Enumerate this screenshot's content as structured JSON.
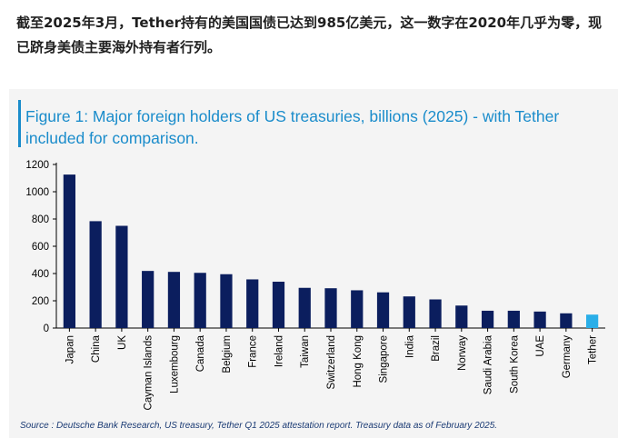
{
  "intro_text": "截至2025年3月，Tether持有的美国国债已达到985亿美元，这一数字在2020年几乎为零，现已跻身美债主要海外持有者行列。",
  "colors": {
    "bar": "#0b1e5e",
    "highlight_bar": "#2aaee8",
    "title": "#1a8ccb",
    "source": "#1a3a73",
    "card_background": "#f4f4f4"
  },
  "source_text": "Source : Deutsche Bank Research, US treasury, Tether Q1 2025 attestation report. Treasury data as of February 2025.",
  "chart_data": {
    "type": "bar",
    "title": "Figure 1: Major foreign holders of US treasuries, billions (2025) - with Tether included for comparison.",
    "xlabel": "",
    "ylabel": "",
    "ylim": [
      0,
      1200
    ],
    "yticks": [
      0,
      200,
      400,
      600,
      800,
      1000,
      1200
    ],
    "grid": false,
    "legend": "none",
    "categories": [
      "Japan",
      "China",
      "UK",
      "Cayman Islands",
      "Luxembourg",
      "Canada",
      "Belgium",
      "France",
      "Ireland",
      "Taiwan",
      "Switzerland",
      "Hong Kong",
      "Singapore",
      "India",
      "Brazil",
      "Norway",
      "Saudi Arabia",
      "South Korea",
      "UAE",
      "Germany",
      "Tether"
    ],
    "values": [
      1126,
      784,
      750,
      419,
      412,
      405,
      395,
      357,
      340,
      295,
      292,
      277,
      262,
      232,
      210,
      165,
      127,
      127,
      121,
      108,
      98.5
    ],
    "highlight": "Tether"
  }
}
